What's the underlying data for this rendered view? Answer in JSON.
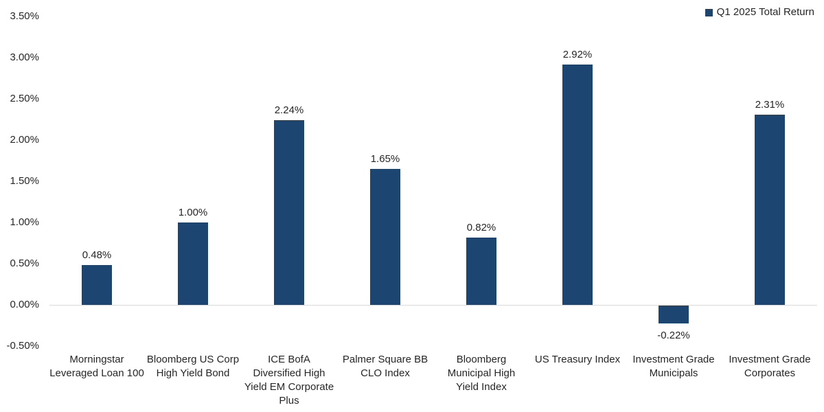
{
  "chart_data": {
    "type": "bar",
    "title": "",
    "legend": {
      "label": "Q1 2025 Total Return",
      "position": "top-right"
    },
    "categories": [
      "Morningstar Leveraged Loan 100",
      "Bloomberg US Corp High Yield Bond",
      "ICE BofA Diversified High Yield EM Corporate Plus",
      "Palmer Square BB CLO Index",
      "Bloomberg Municipal High Yield Index",
      "US Treasury Index",
      "Investment Grade Municipals",
      "Investment Grade Corporates"
    ],
    "category_lines": [
      [
        "Morningstar",
        "Leveraged Loan 100"
      ],
      [
        "Bloomberg US Corp",
        "High Yield Bond"
      ],
      [
        "ICE BofA",
        "Diversified High",
        "Yield EM Corporate",
        "Plus"
      ],
      [
        "Palmer Square BB",
        "CLO Index"
      ],
      [
        "Bloomberg",
        "Municipal High",
        "Yield Index"
      ],
      [
        "US Treasury Index"
      ],
      [
        "Investment Grade",
        "Municipals"
      ],
      [
        "Investment Grade",
        "Corporates"
      ]
    ],
    "series": [
      {
        "name": "Q1 2025 Total Return",
        "values": [
          0.48,
          1.0,
          2.24,
          1.65,
          0.82,
          2.92,
          -0.22,
          2.31
        ],
        "labels": [
          "0.48%",
          "1.00%",
          "2.24%",
          "1.65%",
          "0.82%",
          "2.92%",
          "-0.22%",
          "2.31%"
        ]
      }
    ],
    "y_axis": {
      "tick_labels": [
        "3.50%",
        "3.00%",
        "2.50%",
        "2.00%",
        "1.50%",
        "1.00%",
        "0.50%",
        "0.00%",
        "-0.50%"
      ],
      "tick_values": [
        3.5,
        3.0,
        2.5,
        2.0,
        1.5,
        1.0,
        0.5,
        0.0,
        -0.5
      ],
      "ylim": [
        -0.5,
        3.5
      ]
    },
    "grid": false,
    "colors": {
      "bar": "#1C4571",
      "axis_line": "#D9D9D9",
      "text": "#262626"
    }
  }
}
